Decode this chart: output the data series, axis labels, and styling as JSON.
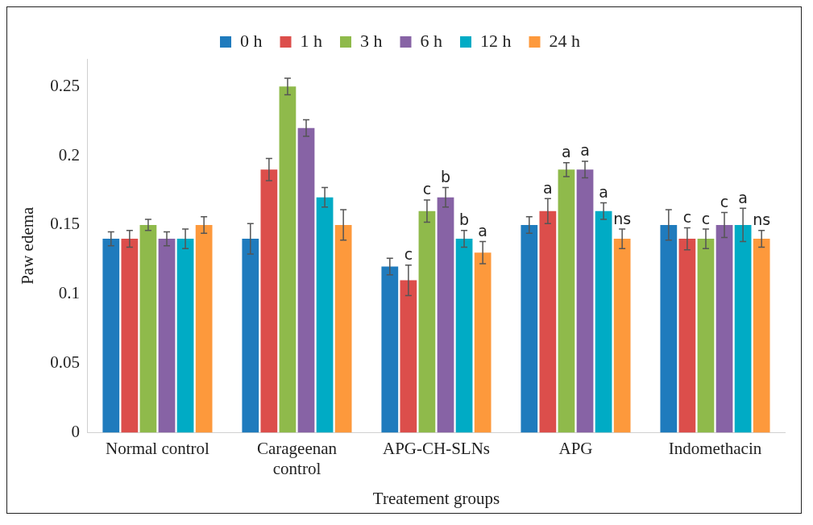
{
  "chart_data": {
    "type": "bar",
    "xlabel": "Treatement groups",
    "ylabel": "Paw edema",
    "categories": [
      "Normal control",
      "Carageenan control",
      "APG-CH-SLNs",
      "APG",
      "Indomethacin"
    ],
    "series": [
      {
        "name": "0 h",
        "color": "#1f7bbd",
        "values": [
          0.14,
          0.14,
          0.12,
          0.15,
          0.15
        ],
        "errors": [
          0.005,
          0.011,
          0.006,
          0.006,
          0.011
        ]
      },
      {
        "name": "1 h",
        "color": "#dc4e4b",
        "values": [
          0.14,
          0.19,
          0.11,
          0.16,
          0.14
        ],
        "errors": [
          0.006,
          0.008,
          0.011,
          0.009,
          0.008
        ]
      },
      {
        "name": "3 h",
        "color": "#8fba4b",
        "values": [
          0.15,
          0.25,
          0.16,
          0.19,
          0.14
        ],
        "errors": [
          0.004,
          0.006,
          0.008,
          0.005,
          0.007
        ]
      },
      {
        "name": "6 h",
        "color": "#8763a5",
        "values": [
          0.14,
          0.22,
          0.17,
          0.19,
          0.15
        ],
        "errors": [
          0.005,
          0.006,
          0.007,
          0.006,
          0.009
        ]
      },
      {
        "name": "12 h",
        "color": "#00abc5",
        "values": [
          0.14,
          0.17,
          0.14,
          0.16,
          0.15
        ],
        "errors": [
          0.007,
          0.007,
          0.006,
          0.006,
          0.012
        ]
      },
      {
        "name": "24 h",
        "color": "#fd993c",
        "values": [
          0.15,
          0.15,
          0.13,
          0.14,
          0.14
        ],
        "errors": [
          0.006,
          0.011,
          0.008,
          0.007,
          0.006
        ]
      }
    ],
    "ylim": [
      0,
      0.27
    ],
    "yticks": [
      0,
      0.05,
      0.1,
      0.15,
      0.2,
      0.25
    ],
    "grid": false,
    "legend": "top",
    "annotations": [
      {
        "text": "c",
        "x": "APG-CH-SLNs",
        "y": 0.11
      },
      {
        "text": "c",
        "x": "APG-CH-SLNs",
        "y": 0.16
      },
      {
        "text": "b",
        "x": "APG-CH-SLNs",
        "y": 0.17
      },
      {
        "text": "b",
        "x": "APG-CH-SLNs",
        "y": 0.14
      },
      {
        "text": "a",
        "x": "APG-CH-SLNs",
        "y": 0.13
      },
      {
        "text": "a",
        "x": "APG",
        "y": 0.16
      },
      {
        "text": "a",
        "x": "APG",
        "y": 0.19
      },
      {
        "text": "a",
        "x": "APG",
        "y": 0.19
      },
      {
        "text": "a",
        "x": "APG",
        "y": 0.16
      },
      {
        "text": "ns",
        "x": "APG",
        "y": 0.14
      },
      {
        "text": "c",
        "x": "Indomethacin",
        "y": 0.14
      },
      {
        "text": "c",
        "x": "Indomethacin",
        "y": 0.14
      },
      {
        "text": "c",
        "x": "Indomethacin",
        "y": 0.15
      },
      {
        "text": "a",
        "x": "Indomethacin",
        "y": 0.15
      },
      {
        "text": "ns",
        "x": "Indomethacin",
        "y": 0.14
      }
    ]
  }
}
